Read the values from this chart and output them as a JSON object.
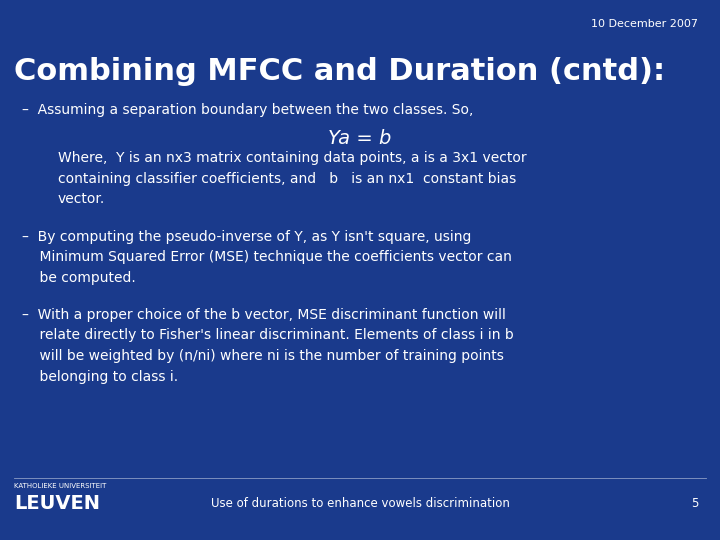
{
  "bg_color": "#1a3a8c",
  "title": "Combining MFCC and Duration (cntd):",
  "title_color": "#ffffff",
  "title_fontsize": 22,
  "date_text": "10 December 2007",
  "date_color": "#ffffff",
  "date_fontsize": 8,
  "bullet1": "–  Assuming a separation boundary between the two classes. So,",
  "formula": "Ya = b",
  "where_text": "Where,  Y is an nx3 matrix containing data points, a is a 3x1 vector\ncontaining classifier coefficients, and   b   is an nx1  constant bias\nvector.",
  "bullet2": "–  By computing the pseudo-inverse of Y, as Y isn't square, using\n    Minimum Squared Error (MSE) technique the coefficients vector can\n    be computed.",
  "bullet3": "–  With a proper choice of the b vector, MSE discriminant function will\n    relate directly to Fisher's linear discriminant. Elements of class i in b\n    will be weighted by (n/ni) where ni is the number of training points\n    belonging to class i.",
  "footer_text": "Use of durations to enhance vowels discrimination",
  "footer_page": "5",
  "text_color": "#ffffff",
  "body_fontsize": 10,
  "formula_fontsize": 14,
  "leuven_small": "KATHOLIEKE UNIVERSITEIT",
  "leuven_big": "LEUVEN"
}
